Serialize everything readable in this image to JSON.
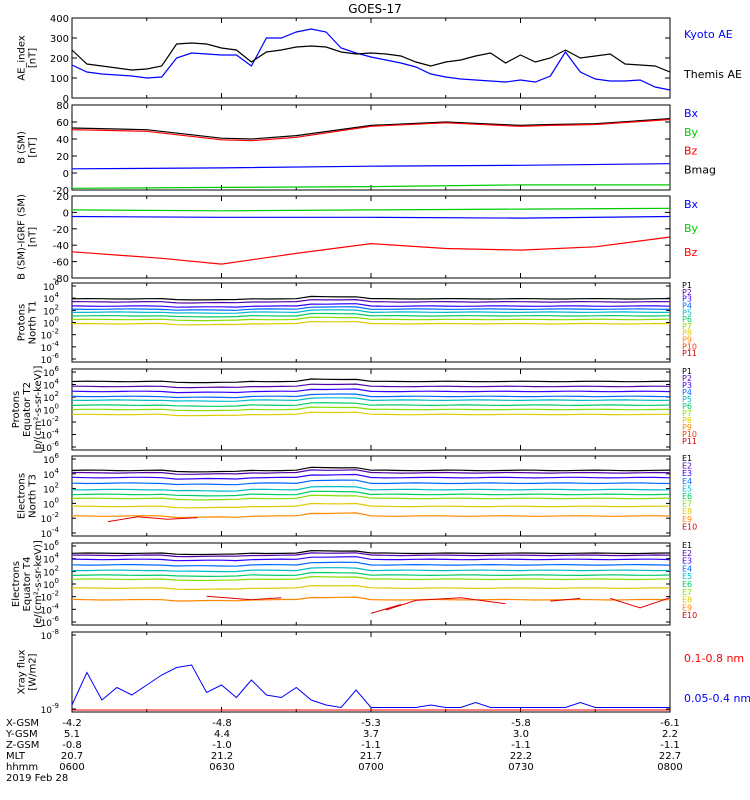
{
  "title": "GOES-17",
  "date_label": "2019 Feb 28",
  "footer": {
    "rows": [
      {
        "label": "X-GSM",
        "values": [
          "-4.2",
          "-4.8",
          "-5.3",
          "-5.8",
          "-6.1"
        ]
      },
      {
        "label": "Y-GSM",
        "values": [
          "5.1",
          "4.4",
          "3.7",
          "3.0",
          "2.2"
        ]
      },
      {
        "label": "Z-GSM",
        "values": [
          "-0.8",
          "-1.0",
          "-1.1",
          "-1.1",
          "-1.1"
        ]
      },
      {
        "label": "MLT",
        "values": [
          "20.7",
          "21.2",
          "21.7",
          "22.2",
          "22.7"
        ]
      },
      {
        "label": "hhmm",
        "values": [
          "0600",
          "0630",
          "0700",
          "0730",
          "0800"
        ]
      }
    ]
  },
  "chart_data": [
    {
      "type": "line",
      "ylabel": [
        "AE_index",
        "[nT]"
      ],
      "ylim": [
        0,
        400
      ],
      "yticks": [
        "0",
        "100",
        "200",
        "300",
        "400"
      ],
      "legend": [
        {
          "name": "Kyoto AE",
          "color": "#0000ff"
        },
        {
          "name": "Themis AE",
          "color": "#000000"
        }
      ],
      "x_hours": [
        6.0,
        8.0
      ],
      "series": [
        {
          "name": "Kyoto AE",
          "color": "#0000ff",
          "x": [
            6.0,
            6.05,
            6.1,
            6.15,
            6.2,
            6.25,
            6.3,
            6.35,
            6.4,
            6.45,
            6.5,
            6.55,
            6.6,
            6.65,
            6.7,
            6.75,
            6.8,
            6.85,
            6.9,
            6.95,
            7.0,
            7.05,
            7.1,
            7.15,
            7.2,
            7.25,
            7.3,
            7.35,
            7.4,
            7.45,
            7.5,
            7.55,
            7.6,
            7.65,
            7.7,
            7.75,
            7.8,
            7.85,
            7.9,
            7.95,
            8.0
          ],
          "values": [
            165,
            130,
            120,
            115,
            110,
            100,
            105,
            200,
            225,
            220,
            215,
            215,
            160,
            300,
            300,
            330,
            345,
            330,
            250,
            225,
            205,
            190,
            175,
            155,
            120,
            105,
            95,
            90,
            85,
            80,
            90,
            80,
            110,
            230,
            130,
            95,
            85,
            85,
            90,
            55,
            40
          ]
        },
        {
          "name": "Themis AE",
          "color": "#000000",
          "x": [
            6.0,
            6.05,
            6.1,
            6.15,
            6.2,
            6.25,
            6.3,
            6.35,
            6.4,
            6.45,
            6.5,
            6.55,
            6.6,
            6.65,
            6.7,
            6.75,
            6.8,
            6.85,
            6.9,
            6.95,
            7.0,
            7.05,
            7.1,
            7.15,
            7.2,
            7.25,
            7.3,
            7.35,
            7.4,
            7.45,
            7.5,
            7.55,
            7.6,
            7.65,
            7.7,
            7.75,
            7.8,
            7.85,
            7.9,
            7.95,
            8.0
          ],
          "values": [
            240,
            170,
            160,
            150,
            140,
            145,
            160,
            270,
            275,
            270,
            250,
            240,
            180,
            230,
            240,
            255,
            260,
            255,
            230,
            220,
            225,
            220,
            210,
            180,
            160,
            180,
            190,
            210,
            225,
            175,
            215,
            180,
            200,
            240,
            200,
            210,
            220,
            170,
            165,
            160,
            130
          ]
        }
      ]
    },
    {
      "type": "line",
      "ylabel": [
        "B (SM)",
        "[nT]"
      ],
      "ylim": [
        -20,
        80
      ],
      "yticks": [
        "-20",
        "0",
        "20",
        "40",
        "60",
        "80"
      ],
      "legend": [
        {
          "name": "Bx",
          "color": "#0000ff"
        },
        {
          "name": "By",
          "color": "#00cc00"
        },
        {
          "name": "Bz",
          "color": "#ff0000"
        },
        {
          "name": "Bmag",
          "color": "#000000"
        }
      ],
      "series": [
        {
          "name": "Bmag",
          "color": "#000000",
          "x": [
            6.0,
            6.25,
            6.5,
            6.6,
            6.75,
            7.0,
            7.25,
            7.5,
            7.6,
            7.75,
            8.0
          ],
          "values": [
            53,
            51,
            41,
            40,
            44,
            56,
            60,
            56,
            57,
            58,
            64
          ]
        },
        {
          "name": "Bz",
          "color": "#ff0000",
          "x": [
            6.0,
            6.25,
            6.5,
            6.6,
            6.75,
            7.0,
            7.25,
            7.5,
            7.6,
            7.75,
            8.0
          ],
          "values": [
            51,
            49,
            39,
            38,
            42,
            55,
            59,
            55,
            56,
            57,
            63
          ]
        },
        {
          "name": "Bx",
          "color": "#0000ff",
          "x": [
            6.0,
            6.5,
            7.0,
            7.5,
            8.0
          ],
          "values": [
            5,
            6,
            8,
            9,
            11
          ]
        },
        {
          "name": "By",
          "color": "#00cc00",
          "x": [
            6.0,
            6.5,
            7.0,
            7.5,
            8.0
          ],
          "values": [
            -18,
            -17,
            -16,
            -14,
            -14
          ]
        }
      ]
    },
    {
      "type": "line",
      "ylabel": [
        "B (SM)-IGRF (SM)",
        "[nT]"
      ],
      "ylim": [
        -80,
        20
      ],
      "yticks": [
        "-80",
        "-60",
        "-40",
        "-20",
        "0",
        "20"
      ],
      "legend": [
        {
          "name": "Bx",
          "color": "#0000ff"
        },
        {
          "name": "By",
          "color": "#00cc00"
        },
        {
          "name": "Bz",
          "color": "#ff0000"
        }
      ],
      "series": [
        {
          "name": "By",
          "color": "#00cc00",
          "x": [
            6.0,
            6.5,
            7.0,
            7.5,
            8.0
          ],
          "values": [
            3,
            2,
            3,
            4,
            5
          ]
        },
        {
          "name": "Bx",
          "color": "#0000ff",
          "x": [
            6.0,
            6.5,
            7.0,
            7.5,
            8.0
          ],
          "values": [
            -5,
            -6,
            -6,
            -7,
            -5
          ]
        },
        {
          "name": "Bz",
          "color": "#ff0000",
          "x": [
            6.0,
            6.3,
            6.5,
            6.75,
            7.0,
            7.25,
            7.5,
            7.75,
            8.0
          ],
          "values": [
            -48,
            -56,
            -63,
            -50,
            -38,
            -44,
            -46,
            -42,
            -30
          ]
        }
      ]
    },
    {
      "type": "line",
      "log": true,
      "ylabel": [
        "Protons",
        "North T1"
      ],
      "yticks": [
        "10^-6",
        "10^-4",
        "10^-2",
        "10^0",
        "10^2",
        "10^4",
        "10^6"
      ],
      "ylog_range": [
        -7,
        6
      ],
      "legend": [
        "P1",
        "P2",
        "P3",
        "P4",
        "P5",
        "P6",
        "P7",
        "P8",
        "P9",
        "P10",
        "P11"
      ],
      "levels": [
        3.4,
        2.9,
        2.2,
        1.7,
        1.2,
        0.6,
        0.0,
        -0.7,
        -7,
        -7,
        -7
      ],
      "colors": [
        "#000000",
        "#5500aa",
        "#3300ff",
        "#0066ff",
        "#00bbcc",
        "#00cc66",
        "#88dd00",
        "#ddcc00",
        "#ff8800",
        "#ff3300",
        "#cc0000"
      ]
    },
    {
      "type": "line",
      "log": true,
      "ylabel": [
        "Protons",
        "Equator T2",
        "[p/(cm²-s-sr-keV)]"
      ],
      "yticks": [
        "10^-6",
        "10^-4",
        "10^-2",
        "10^0",
        "10^2",
        "10^4",
        "10^6"
      ],
      "ylog_range": [
        -7,
        6
      ],
      "legend": [
        "P1",
        "P2",
        "P3",
        "P4",
        "P5",
        "P6",
        "P7",
        "P8",
        "P9",
        "P10",
        "P11"
      ],
      "levels": [
        4.0,
        3.2,
        2.4,
        1.6,
        1.0,
        0.2,
        -0.5,
        -1.3,
        -7,
        -7,
        -7
      ],
      "colors": [
        "#000000",
        "#5500aa",
        "#3300ff",
        "#0066ff",
        "#00bbcc",
        "#00cc66",
        "#88dd00",
        "#ddcc00",
        "#ff8800",
        "#ff3300",
        "#cc0000"
      ]
    },
    {
      "type": "line",
      "log": true,
      "ylabel": [
        "Electrons",
        "North T3"
      ],
      "yticks": [
        "10^-4",
        "10^-2",
        "10^0",
        "10^2",
        "10^4",
        "10^6"
      ],
      "ylog_range": [
        -4,
        6
      ],
      "legend": [
        "E1",
        "E2",
        "E3",
        "E4",
        "E5",
        "E6",
        "E7",
        "E8",
        "E9",
        "E10"
      ],
      "levels": [
        4.2,
        3.9,
        3.3,
        2.6,
        1.8,
        1.2,
        0.7,
        -0.3,
        -1.5,
        -4
      ],
      "colors": [
        "#000000",
        "#5500aa",
        "#3300ff",
        "#0066ff",
        "#00bbcc",
        "#00cc66",
        "#88dd00",
        "#ddcc00",
        "#ff8800",
        "#cc0000"
      ]
    },
    {
      "type": "line",
      "log": true,
      "ylabel": [
        "Electrons",
        "Equator T4",
        "[e/(cm²-s-sr-keV)]"
      ],
      "yticks": [
        "10^-6",
        "10^-4",
        "10^-2",
        "10^0",
        "10^2",
        "10^4",
        "10^6"
      ],
      "ylog_range": [
        -6,
        6
      ],
      "legend": [
        "E1",
        "E2",
        "E3",
        "E4",
        "E5",
        "E6",
        "E7",
        "E8",
        "E9",
        "E10"
      ],
      "levels": [
        4.5,
        4.2,
        3.6,
        2.8,
        2.0,
        1.3,
        0.7,
        -0.6,
        -2.3,
        -6
      ],
      "colors": [
        "#000000",
        "#5500aa",
        "#3300ff",
        "#0066ff",
        "#00bbcc",
        "#00cc66",
        "#88dd00",
        "#ddcc00",
        "#ff8800",
        "#cc0000"
      ]
    },
    {
      "type": "line",
      "log": true,
      "ylabel": [
        "Xray flux",
        "[W/m2]"
      ],
      "yticks": [
        "10^-9",
        "10^-8"
      ],
      "legend": [
        {
          "name": "0.1-0.8 nm",
          "color": "#ff0000"
        },
        {
          "name": "0.05-0.4 nm",
          "color": "#0000ff"
        }
      ],
      "series": [
        {
          "name": "0.05-0.4 nm",
          "color": "#0000ff",
          "x": [
            6.0,
            6.05,
            6.1,
            6.15,
            6.2,
            6.25,
            6.3,
            6.35,
            6.4,
            6.45,
            6.5,
            6.55,
            6.6,
            6.65,
            6.7,
            6.75,
            6.8,
            6.85,
            6.9,
            6.95,
            7.0,
            7.05,
            7.1,
            7.15,
            7.2,
            7.25,
            7.3,
            7.35,
            7.4,
            7.45,
            7.5,
            7.55,
            7.6,
            7.65,
            7.7,
            7.75,
            7.8,
            7.85,
            7.9,
            7.95,
            8.0
          ],
          "values": [
            0.1,
            0.75,
            0.2,
            0.45,
            0.3,
            0.5,
            0.7,
            0.85,
            0.9,
            0.35,
            0.5,
            0.25,
            0.6,
            0.3,
            0.25,
            0.45,
            0.2,
            0.1,
            0.05,
            0.4,
            0.05,
            0.05,
            0.05,
            0.05,
            0.1,
            0.05,
            0.05,
            0.15,
            0.05,
            0.05,
            0.05,
            0.05,
            0.05,
            0.05,
            0.15,
            0.05,
            0.05,
            0.05,
            0.05,
            0.05,
            0.05
          ]
        },
        {
          "name": "0.1-0.8 nm",
          "color": "#ff0000",
          "x": [
            6.0,
            8.0
          ],
          "values": [
            0.0,
            0.0
          ]
        }
      ]
    }
  ]
}
